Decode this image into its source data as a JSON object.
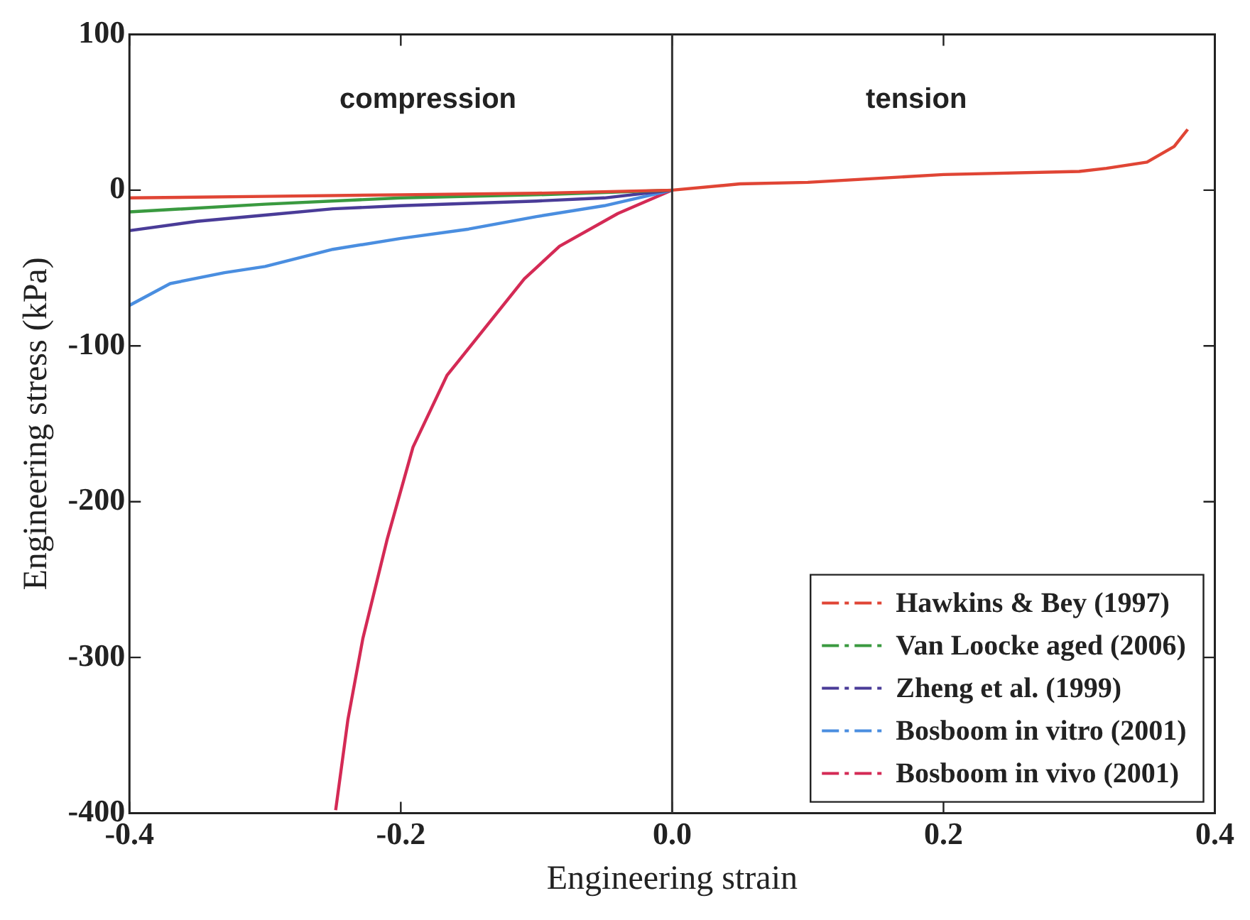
{
  "chart_data": {
    "type": "line",
    "xlabel": "Engineering strain",
    "ylabel": "Engineering stress (kPa)",
    "xlim": [
      -0.4,
      0.4
    ],
    "xticks": [
      -0.4,
      -0.2,
      {
        "value": 0,
        "label": "0.0"
      },
      0.2,
      0.4
    ],
    "ylim": [
      -400,
      100
    ],
    "yticks": [
      -400,
      -300,
      -200,
      -100,
      0,
      100
    ],
    "grid": false,
    "legend": "bottom right",
    "marker": "none",
    "line_style": "solid",
    "annotations": [
      "compression",
      "tension"
    ],
    "ref_lines": [
      {
        "axis": "x",
        "value": 0,
        "color": "#333333"
      }
    ],
    "series": [
      {
        "name": "Hawkins & Bey (1997)",
        "color": "#e04535",
        "x": [
          -0.4,
          -0.3,
          -0.2,
          -0.1,
          0,
          0.05,
          0.1,
          0.2,
          0.3,
          0.32,
          0.35,
          0.37,
          0.38
        ],
        "values": [
          -5,
          -4,
          -3,
          -2,
          0,
          4,
          5,
          10,
          12,
          14,
          18,
          28,
          39
        ]
      },
      {
        "name": "Van Loocke aged (2006)",
        "color": "#3a9a40",
        "x": [
          -0.4,
          -0.3,
          -0.2,
          -0.1,
          0
        ],
        "values": [
          -14,
          -9,
          -5,
          -3,
          0
        ]
      },
      {
        "name": "Zheng et al. (1999)",
        "color": "#4a3c98",
        "x": [
          -0.4,
          -0.35,
          -0.3,
          -0.25,
          -0.2,
          -0.1,
          -0.05,
          0
        ],
        "values": [
          -26,
          -20,
          -16,
          -12,
          -10,
          -7,
          -5,
          0
        ]
      },
      {
        "name": "Bosboom in vitro (2001)",
        "color": "#4a8ee0",
        "x": [
          -0.4,
          -0.37,
          -0.33,
          -0.3,
          -0.25,
          -0.2,
          -0.15,
          -0.1,
          -0.05,
          0
        ],
        "values": [
          -74,
          -60,
          -53,
          -49,
          -38,
          -31,
          -25,
          -17,
          -10,
          0
        ]
      },
      {
        "name": "Bosboom in vivo (2001)",
        "color": "#d42a55",
        "x": [
          -0.248,
          -0.239,
          -0.228,
          -0.21,
          -0.191,
          -0.166,
          -0.109,
          -0.083,
          -0.04,
          0
        ],
        "values": [
          -398,
          -340,
          -288,
          -224,
          -165,
          -119,
          -57,
          -36,
          -15,
          0
        ]
      }
    ]
  }
}
